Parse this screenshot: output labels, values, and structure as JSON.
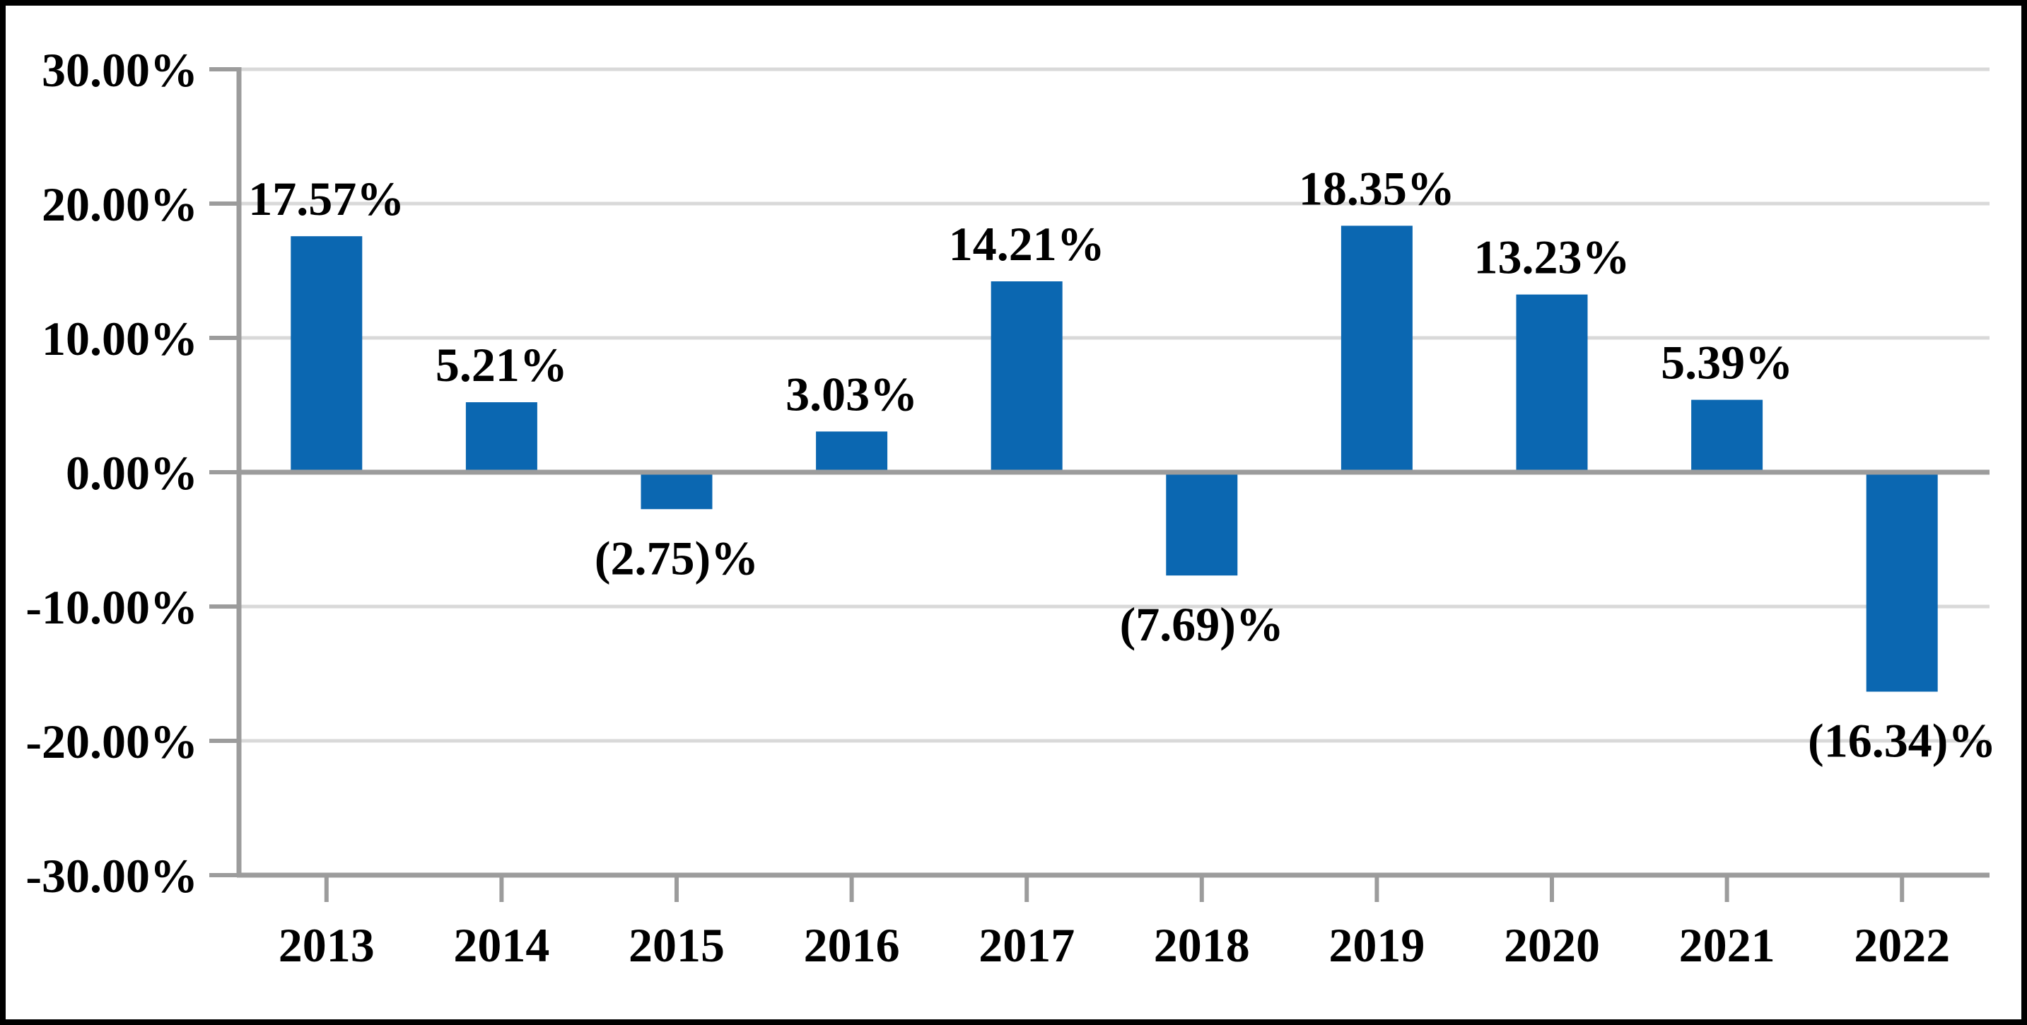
{
  "chart_data": {
    "type": "bar",
    "title": "",
    "xlabel": "",
    "ylabel": "",
    "categories": [
      "2013",
      "2014",
      "2015",
      "2016",
      "2017",
      "2018",
      "2019",
      "2020",
      "2021",
      "2022"
    ],
    "values": [
      17.57,
      5.21,
      -2.75,
      3.03,
      14.21,
      -7.69,
      18.35,
      13.23,
      5.39,
      -16.34
    ],
    "bar_labels": [
      "17.57%",
      "5.21%",
      "(2.75)%",
      "3.03%",
      "14.21%",
      "(7.69)%",
      "18.35%",
      "13.23%",
      "5.39%",
      "(16.34)%"
    ],
    "y_ticks": [
      {
        "value": 30,
        "label": "30.00%"
      },
      {
        "value": 20,
        "label": "20.00%"
      },
      {
        "value": 10,
        "label": "10.00%"
      },
      {
        "value": 0,
        "label": "0.00%"
      },
      {
        "value": -10,
        "label": "-10.00%"
      },
      {
        "value": -20,
        "label": "-20.00%"
      },
      {
        "value": -30,
        "label": "-30.00%"
      }
    ],
    "ylim": [
      -30,
      30
    ],
    "grid": true,
    "legend_position": "none",
    "colors": {
      "bar_fill": "#0B67B1",
      "gridline": "#D9D9D9",
      "axis": "#9C9C9C",
      "label_text": "#000000",
      "background": "#FFFFFF",
      "border": "#000000"
    }
  }
}
